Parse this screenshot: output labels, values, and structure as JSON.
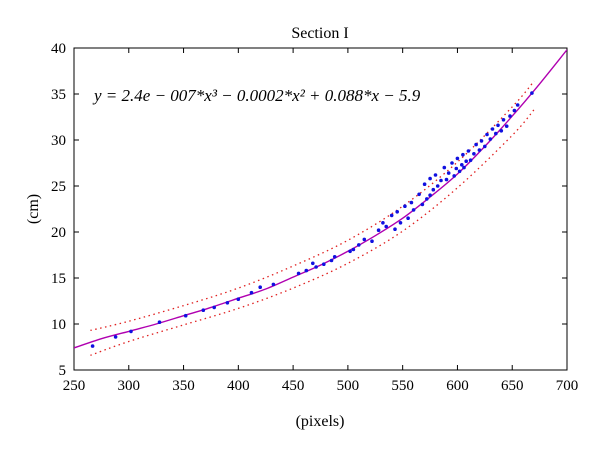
{
  "chart_data": {
    "type": "scatter",
    "title": "Section I",
    "xlabel": "(pixels)",
    "ylabel": "(cm)",
    "xlim": [
      250,
      700
    ],
    "ylim": [
      5,
      40
    ],
    "xticks": [
      250,
      300,
      350,
      400,
      450,
      500,
      550,
      600,
      650,
      700
    ],
    "yticks": [
      5,
      10,
      15,
      20,
      25,
      30,
      35,
      40
    ],
    "grid": false,
    "annotation": "y = 2.4e − 007*x³ − 0.0002*x² + 0.088*x − 5.9",
    "colors": {
      "points": "#1010e0",
      "fit_line": "#b000b0",
      "bounds": "#e02020"
    },
    "fit": {
      "x": [
        250,
        275,
        300,
        325,
        350,
        375,
        400,
        425,
        450,
        475,
        500,
        525,
        550,
        575,
        600,
        625,
        650,
        675,
        700
      ],
      "y": [
        7.4,
        8.4,
        9.2,
        10.0,
        10.9,
        11.8,
        12.8,
        13.8,
        15.1,
        16.4,
        17.9,
        19.6,
        21.5,
        23.8,
        26.3,
        29.3,
        32.6,
        36.1,
        39.8
      ]
    },
    "upper_bound": {
      "x": [
        265,
        300,
        350,
        400,
        450,
        500,
        550,
        600,
        650,
        670
      ],
      "y": [
        9.3,
        10.3,
        12.0,
        13.9,
        16.3,
        19.1,
        22.8,
        27.6,
        33.6,
        36.4
      ]
    },
    "lower_bound": {
      "x": [
        265,
        300,
        350,
        400,
        450,
        500,
        550,
        600,
        650,
        670
      ],
      "y": [
        6.6,
        8.1,
        9.9,
        11.7,
        13.9,
        16.6,
        20.1,
        24.8,
        30.5,
        33.3
      ]
    },
    "points": {
      "x": [
        267,
        288,
        302,
        328,
        352,
        368,
        378,
        390,
        400,
        412,
        420,
        432,
        455,
        462,
        468,
        471,
        478,
        485,
        488,
        502,
        505,
        510,
        515,
        522,
        528,
        532,
        535,
        540,
        543,
        545,
        548,
        552,
        555,
        558,
        560,
        565,
        568,
        570,
        572,
        575,
        575,
        578,
        580,
        582,
        585,
        588,
        590,
        592,
        595,
        597,
        599,
        600,
        602,
        604,
        605,
        606,
        608,
        610,
        612,
        615,
        617,
        620,
        622,
        625,
        627,
        630,
        632,
        635,
        637,
        640,
        642,
        645,
        648,
        652,
        655,
        668
      ],
      "y": [
        7.6,
        8.6,
        9.2,
        10.2,
        10.9,
        11.5,
        11.8,
        12.3,
        12.7,
        13.4,
        14.0,
        14.3,
        15.5,
        15.8,
        16.6,
        16.2,
        16.5,
        16.9,
        17.3,
        17.9,
        18.1,
        18.6,
        19.2,
        19.0,
        20.2,
        21.0,
        20.6,
        21.8,
        20.3,
        22.2,
        21.0,
        22.8,
        21.5,
        23.2,
        22.4,
        24.1,
        23.0,
        25.2,
        23.6,
        24.0,
        25.8,
        24.6,
        26.2,
        25.0,
        25.6,
        27.0,
        25.7,
        26.4,
        27.5,
        26.1,
        26.9,
        28.0,
        26.6,
        27.3,
        28.4,
        27.0,
        27.7,
        28.8,
        27.8,
        28.5,
        29.5,
        28.9,
        29.9,
        29.3,
        30.6,
        30.1,
        31.2,
        30.7,
        31.6,
        31.0,
        32.2,
        31.5,
        32.6,
        33.2,
        33.8,
        35.1
      ]
    }
  }
}
